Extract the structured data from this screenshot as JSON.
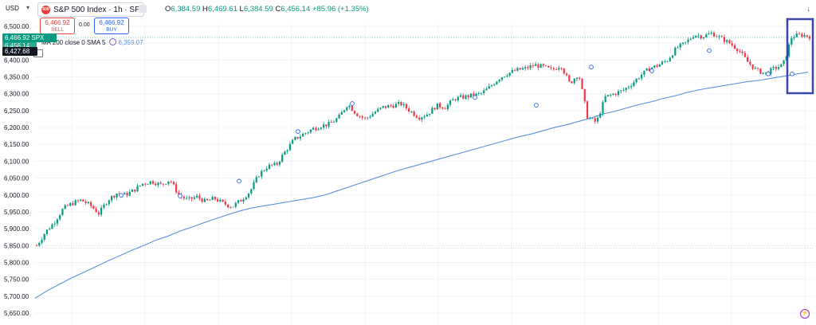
{
  "header": {
    "currency": "USD",
    "symbol": "S&P 500 Index · 1h · SP",
    "logo_text": "500",
    "ohlc": {
      "o_label": "O",
      "o": "6,384.59",
      "h_label": "H",
      "h": "6,469.61",
      "l_label": "L",
      "l": "6,384.59",
      "c_label": "C",
      "c": "6,456.14",
      "change": "+85.96 (+1.35%)"
    },
    "sell_price": "6,466.92",
    "sell_label": "SELL",
    "spread": "0.00",
    "buy_price": "6,466.92",
    "buy_label": "BUY"
  },
  "ma_legend": {
    "text": "MA 200 close 0 SMA 5",
    "value": "6,359.07"
  },
  "price_tags": {
    "current": "6,466.92",
    "current_suffix": "SPX",
    "hidden": "6,456.14",
    "ma": "6,427.68"
  },
  "colors": {
    "up": "#089981",
    "down": "#f23645",
    "ma": "#5b8fe0",
    "highlight_box": "#3949ab",
    "grid": "#f0f3fa"
  },
  "icons": [
    "chevron-down-icon",
    "more-dots-icon",
    "scroll-down-icon",
    "lightning-icon",
    "eye-icon"
  ],
  "chart_data": {
    "type": "candlestick",
    "title": "S&P 500 Index · 1h · SP",
    "ylim": [
      5640,
      6520
    ],
    "y_ticks": [
      "6,500.00",
      "6,450.00",
      "6,400.00",
      "6,350.00",
      "6,300.00",
      "6,250.00",
      "6,200.00",
      "6,150.00",
      "6,100.00",
      "6,050.00",
      "6,000.00",
      "5,950.00",
      "5,900.00",
      "5,850.00",
      "5,800.00",
      "5,750.00",
      "5,700.00",
      "5,650.00"
    ],
    "series": [
      {
        "name": "S&P 500 Index",
        "kind": "close_path",
        "values": [
          5850,
          5890,
          5920,
          5960,
          5975,
          5985,
          5970,
          5945,
          5985,
          6005,
          6000,
          6015,
          6035,
          6040,
          6030,
          6045,
          6000,
          5985,
          5995,
          5980,
          5990,
          5975,
          5965,
          5985,
          6010,
          6060,
          6085,
          6090,
          6130,
          6165,
          6180,
          6195,
          6205,
          6210,
          6230,
          6270,
          6240,
          6225,
          6245,
          6260,
          6265,
          6270,
          6250,
          6230,
          6240,
          6265,
          6260,
          6285,
          6290,
          6295,
          6300,
          6320,
          6345,
          6360,
          6370,
          6375,
          6385,
          6380,
          6370,
          6385,
          6330,
          6360,
          6230,
          6215,
          6290,
          6300,
          6310,
          6330,
          6355,
          6375,
          6385,
          6400,
          6435,
          6450,
          6475,
          6470,
          6480,
          6465,
          6450,
          6430,
          6395,
          6370,
          6360,
          6375,
          6385,
          6470,
          6475,
          6470
        ]
      },
      {
        "name": "MA 200 close 0 SMA 5",
        "kind": "line",
        "values": [
          5694,
          5716,
          5735,
          5754,
          5770,
          5787,
          5804,
          5820,
          5836,
          5850,
          5866,
          5878,
          5893,
          5905,
          5918,
          5930,
          5942,
          5953,
          5962,
          5968,
          5974,
          5980,
          5986,
          5992,
          6000,
          6012,
          6024,
          6036,
          6048,
          6060,
          6072,
          6082,
          6092,
          6102,
          6112,
          6122,
          6132,
          6142,
          6152,
          6162,
          6172,
          6180,
          6190,
          6200,
          6208,
          6218,
          6228,
          6240,
          6248,
          6258,
          6268,
          6276,
          6286,
          6294,
          6304,
          6312,
          6318,
          6324,
          6330,
          6336,
          6340,
          6346,
          6352,
          6358,
          6364
        ]
      }
    ],
    "markers_y": [
      5999,
      5997,
      6041,
      6188,
      6271,
      6289,
      6266,
      6379,
      6368,
      6428,
      6359,
      6359
    ]
  }
}
